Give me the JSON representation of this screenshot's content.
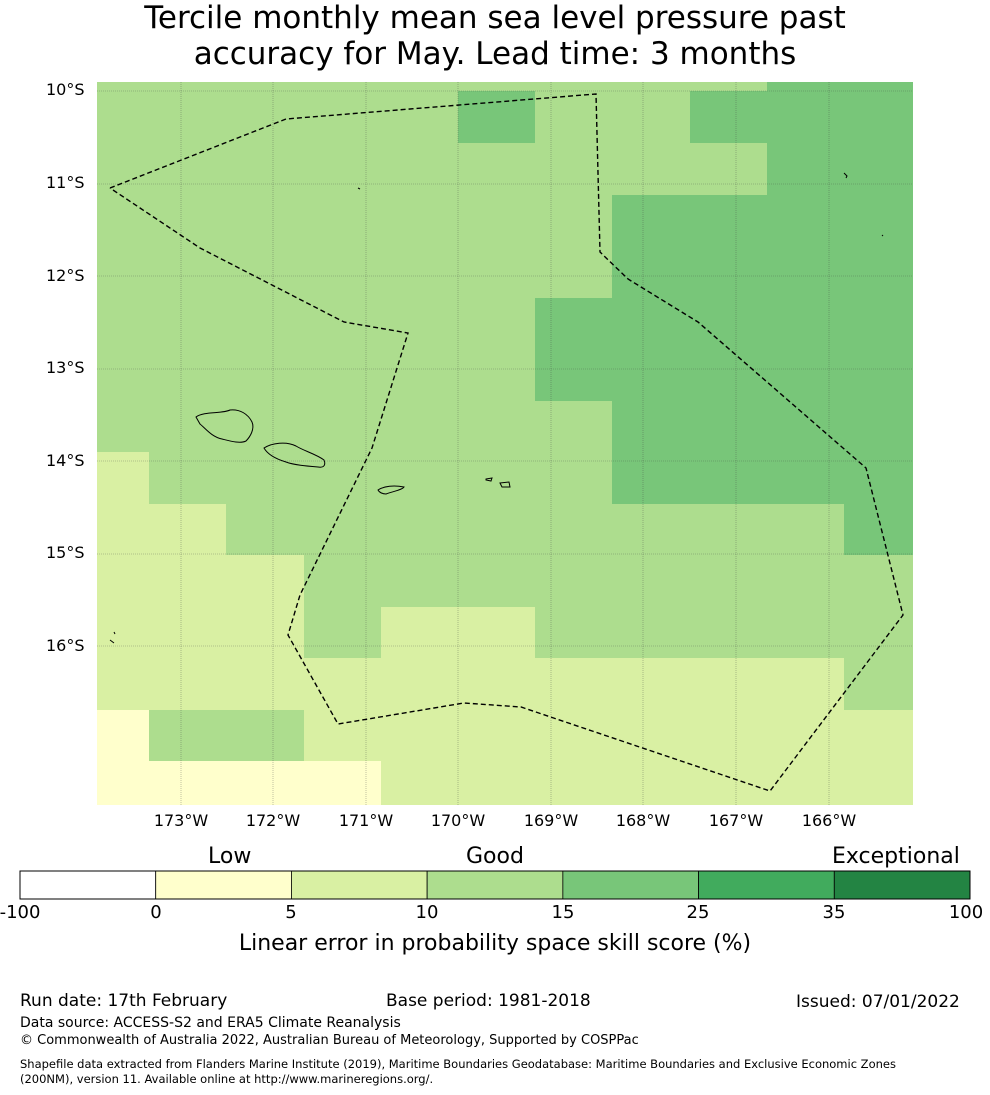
{
  "title": {
    "line1": "Tercile monthly mean sea level pressure past",
    "line2": "accuracy for May. Lead time: 3 months"
  },
  "map": {
    "lat_labels": [
      "10°S",
      "11°S",
      "12°S",
      "13°S",
      "14°S",
      "15°S",
      "16°S"
    ],
    "lon_labels": [
      "173°W",
      "172°W",
      "171°W",
      "170°W",
      "169°W",
      "168°W",
      "167°W",
      "166°W"
    ],
    "grid": "on",
    "boundary_style": "dashed",
    "colors": {
      "c0_5": "#ffffcc",
      "c5_10": "#d9f0a3",
      "c10_15": "#addd8e",
      "c15_25": "#78c679",
      "c25_35": "#41ab5d",
      "c35_100": "#238443"
    }
  },
  "colorbar": {
    "categories": [
      "Low",
      "Good",
      "Exceptional"
    ],
    "ticks": [
      "-100",
      "0",
      "5",
      "10",
      "15",
      "25",
      "35",
      "100"
    ],
    "colors": [
      "#ffffff",
      "#ffffcc",
      "#d9f0a3",
      "#addd8e",
      "#78c679",
      "#41ab5d",
      "#238443"
    ],
    "label": "Linear error in probability space skill score (%)"
  },
  "footer": {
    "run_date": "Run date: 17th February",
    "base_period": "Base period: 1981-2018",
    "issued": "Issued: 07/01/2022",
    "data_source": "Data source: ACCESS-S2 and ERA5 Climate Reanalysis",
    "copyright": "© Commonwealth of Australia 2022, Australian Bureau of Meteorology, Supported by COSPPac",
    "shapefile_line1": "Shapefile data extracted from Flanders Marine Institute (2019), Maritime Boundaries Geodatabase: Maritime Boundaries and Exclusive Economic Zones",
    "shapefile_line2": "(200NM), version 11. Available online at http://www.marineregions.org/."
  }
}
